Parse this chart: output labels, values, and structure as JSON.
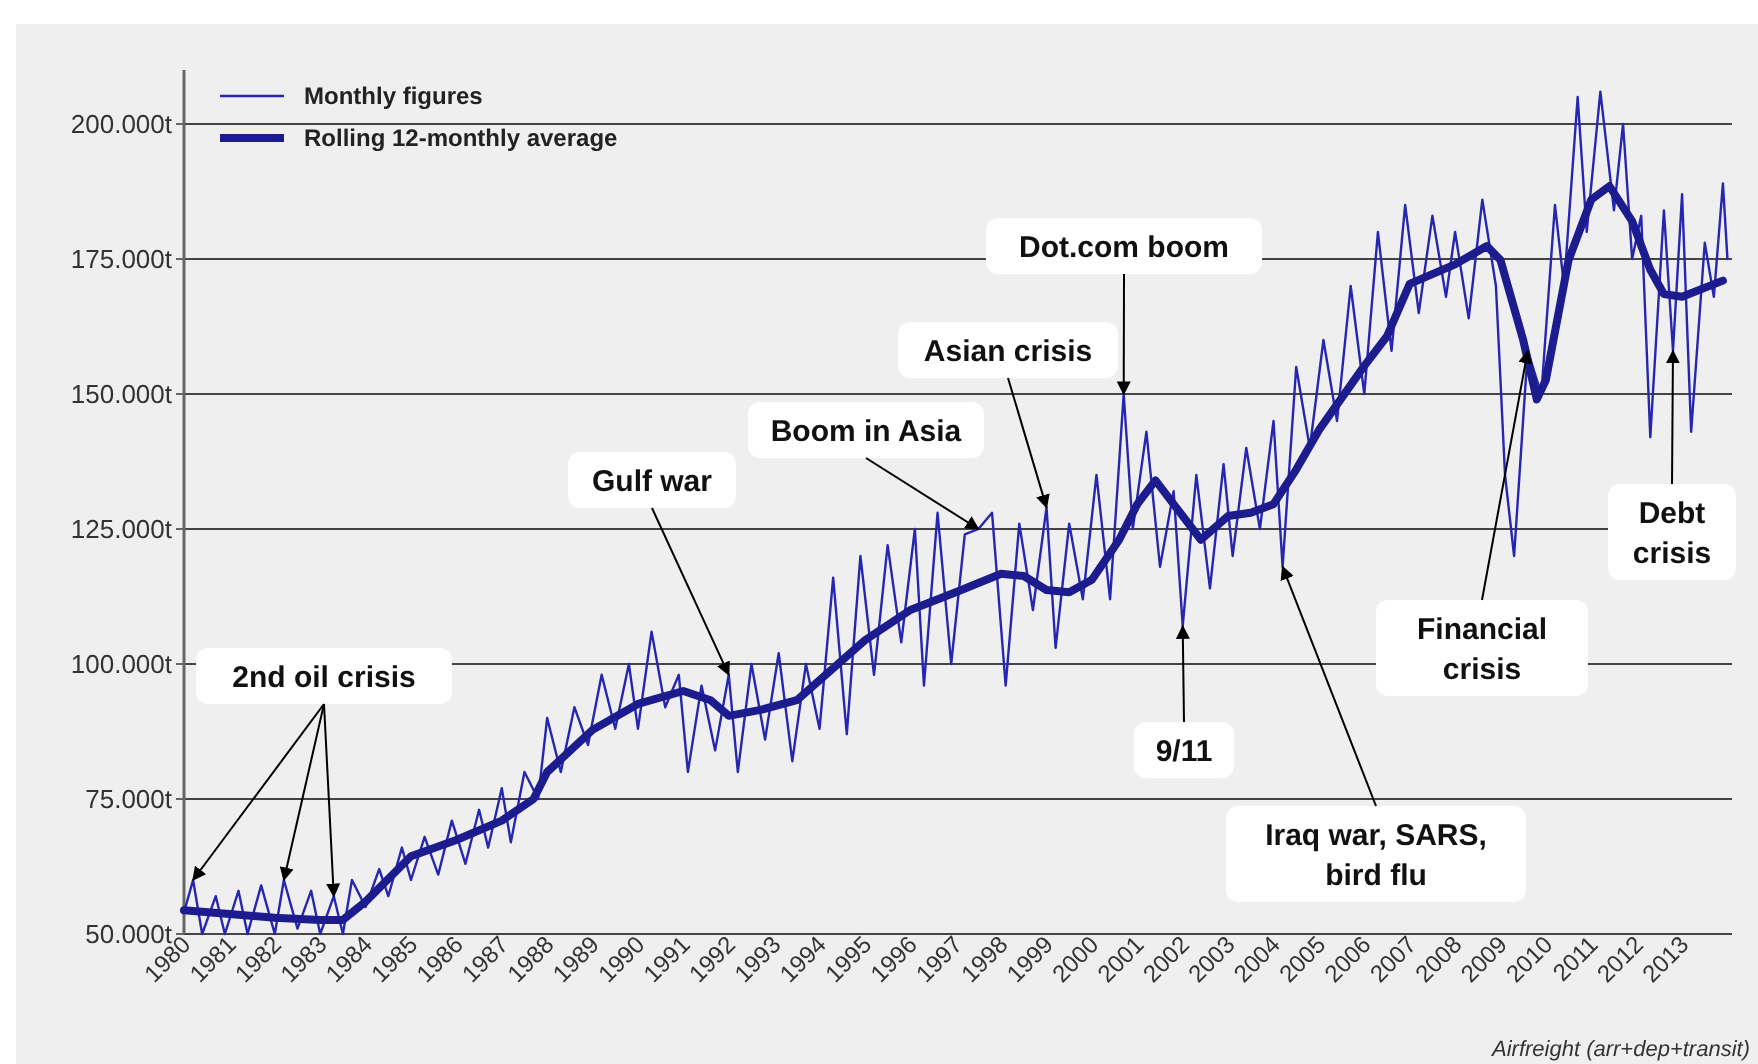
{
  "chart_data": {
    "type": "line",
    "legend": "top left",
    "grid": "y",
    "xlim": [
      1980,
      2014.1
    ],
    "xticks": [
      1980,
      1981,
      1982,
      1983,
      1984,
      1985,
      1986,
      1987,
      1988,
      1989,
      1990,
      1991,
      1992,
      1993,
      1994,
      1995,
      1996,
      1997,
      1998,
      1999,
      2000,
      2001,
      2002,
      2003,
      2004,
      2005,
      2006,
      2007,
      2008,
      2009,
      2010,
      2011,
      2012,
      2013
    ],
    "ylim": [
      50,
      210
    ],
    "yticks": [
      {
        "value": 50,
        "label": "50.000t"
      },
      {
        "value": 75,
        "label": "75.000t"
      },
      {
        "value": 100,
        "label": "100.000t"
      },
      {
        "value": 125,
        "label": "125.000t"
      },
      {
        "value": 150,
        "label": "150.000t"
      },
      {
        "value": 175,
        "label": "175.000t"
      },
      {
        "value": 200,
        "label": "200.000t"
      }
    ],
    "series": [
      {
        "name": "Monthly figures",
        "color": "#2626b0",
        "line_style": "solid",
        "x": [
          1980.0,
          1980.2,
          1980.4,
          1980.7,
          1980.9,
          1981.2,
          1981.4,
          1981.7,
          1982.0,
          1982.2,
          1982.5,
          1982.8,
          1983.0,
          1983.3,
          1983.5,
          1983.7,
          1984.0,
          1984.3,
          1984.5,
          1984.8,
          1985.0,
          1985.3,
          1985.6,
          1985.9,
          1986.2,
          1986.5,
          1986.7,
          1987.0,
          1987.2,
          1987.5,
          1987.8,
          1988.0,
          1988.3,
          1988.6,
          1988.9,
          1989.2,
          1989.5,
          1989.8,
          1990.0,
          1990.3,
          1990.6,
          1990.9,
          1991.1,
          1991.4,
          1991.7,
          1992.0,
          1992.2,
          1992.5,
          1992.8,
          1993.1,
          1993.4,
          1993.7,
          1994.0,
          1994.3,
          1994.6,
          1994.9,
          1995.2,
          1995.5,
          1995.8,
          1996.1,
          1996.3,
          1996.6,
          1996.9,
          1997.2,
          1997.5,
          1997.8,
          1998.1,
          1998.4,
          1998.7,
          1999.0,
          1999.2,
          1999.5,
          1999.8,
          2000.1,
          2000.4,
          2000.7,
          2000.9,
          2001.2,
          2001.5,
          2001.8,
          2002.0,
          2002.3,
          2002.6,
          2002.9,
          2003.1,
          2003.4,
          2003.7,
          2004.0,
          2004.2,
          2004.5,
          2004.8,
          2005.1,
          2005.4,
          2005.7,
          2006.0,
          2006.3,
          2006.6,
          2006.9,
          2007.2,
          2007.5,
          2007.8,
          2008.0,
          2008.3,
          2008.6,
          2008.9,
          2009.1,
          2009.3,
          2009.6,
          2009.9,
          2010.2,
          2010.4,
          2010.7,
          2010.9,
          2011.2,
          2011.5,
          2011.7,
          2011.9,
          2012.1,
          2012.3,
          2012.6,
          2012.8,
          2013.0,
          2013.2,
          2013.5,
          2013.7,
          2013.9,
          2014.0
        ],
        "values": [
          54,
          60,
          50,
          57,
          50,
          58,
          50,
          59,
          50,
          60,
          51,
          58,
          50,
          57,
          50,
          60,
          55,
          62,
          57,
          66,
          60,
          68,
          61,
          71,
          63,
          73,
          66,
          77,
          67,
          80,
          75,
          90,
          80,
          92,
          85,
          98,
          88,
          100,
          88,
          106,
          92,
          98,
          80,
          96,
          84,
          98,
          80,
          100,
          86,
          102,
          82,
          100,
          88,
          116,
          87,
          120,
          98,
          122,
          104,
          125,
          96,
          128,
          100,
          124,
          125,
          128,
          96,
          126,
          110,
          129,
          103,
          126,
          112,
          135,
          112,
          150,
          125,
          143,
          118,
          132,
          107,
          135,
          114,
          137,
          120,
          140,
          125,
          145,
          118,
          155,
          140,
          160,
          145,
          170,
          150,
          180,
          158,
          185,
          165,
          183,
          168,
          180,
          164,
          186,
          170,
          135,
          120,
          158,
          150,
          185,
          170,
          205,
          180,
          206,
          184,
          200,
          175,
          183,
          142,
          184,
          158,
          187,
          143,
          178,
          168,
          189,
          175
        ]
      },
      {
        "name": "Rolling 12-monthly average",
        "color": "#1c1c8f",
        "line_style": "solid",
        "x": [
          1980.0,
          1981.0,
          1982.0,
          1983.0,
          1983.5,
          1984.0,
          1985.0,
          1986.0,
          1987.0,
          1987.7,
          1988.0,
          1989.0,
          1990.0,
          1991.0,
          1991.6,
          1992.0,
          1992.7,
          1993.5,
          1994.0,
          1995.0,
          1996.0,
          1997.0,
          1998.0,
          1998.5,
          1999.0,
          1999.5,
          2000.0,
          2000.6,
          2001.0,
          2001.4,
          2001.9,
          2002.4,
          2003.0,
          2003.5,
          2004.0,
          2004.5,
          2005.0,
          2006.0,
          2006.5,
          2007.0,
          2008.0,
          2008.7,
          2009.0,
          2009.5,
          2009.8,
          2010.0,
          2010.5,
          2011.0,
          2011.4,
          2011.9,
          2012.3,
          2012.6,
          2013.0,
          2013.9
        ],
        "values": [
          54.4,
          53.7,
          53,
          52.6,
          52.6,
          56,
          64.4,
          67.4,
          71,
          75,
          80,
          87.8,
          92.6,
          95,
          93.3,
          90.4,
          91.5,
          93.3,
          97,
          104.4,
          110,
          113.3,
          116.7,
          116.3,
          113.7,
          113.3,
          115.6,
          123,
          129.6,
          134,
          128.5,
          123,
          127.4,
          128,
          129.6,
          136,
          143.3,
          155.2,
          160.7,
          170.4,
          174,
          177.4,
          174.8,
          160,
          149,
          152.6,
          174.8,
          186,
          188.5,
          182,
          173,
          168.5,
          168,
          171
        ]
      }
    ],
    "annotations": [
      {
        "text": "2nd oil crisis",
        "x": 1982.2,
        "y": 60
      },
      {
        "text": "Gulf war",
        "x": 1992.0,
        "y": 98
      },
      {
        "text": "Boom in Asia",
        "x": 1997.5,
        "y": 125
      },
      {
        "text": "Asian crisis",
        "x": 1999.0,
        "y": 129
      },
      {
        "text": "Dot.com boom",
        "x": 2000.7,
        "y": 150
      },
      {
        "text": "9/11",
        "x": 2002.0,
        "y": 107
      },
      {
        "text": "Iraq war, SARS,\nbird flu",
        "x": 2004.2,
        "y": 118
      },
      {
        "text": "Financial\ncrisis",
        "x": 2009.6,
        "y": 158
      },
      {
        "text": "Debt\ncrisis",
        "x": 2012.8,
        "y": 158
      },
      "Airfreight (arr+dep+transit)"
    ]
  }
}
